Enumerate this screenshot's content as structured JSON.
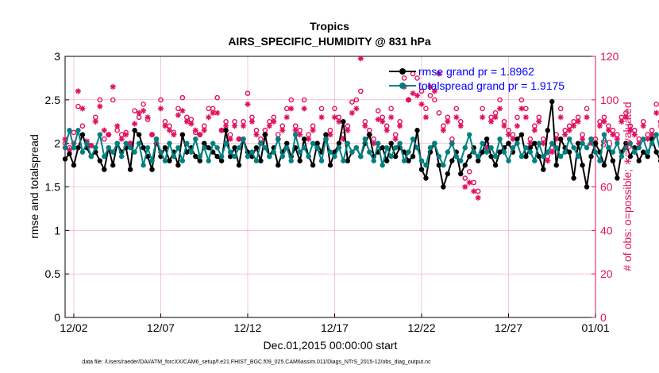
{
  "chart_data": {
    "type": "line",
    "title": "Tropics",
    "subtitle": "AIRS_SPECIFIC_HUMIDITY @ 831 hPa",
    "xlabel": "Dec.01,2015 00:00:00 start",
    "ylabel": "rmse and totalspread",
    "y2label": "# of obs: o=possible; ∗=evaluated",
    "x_ticks": [
      "12/02",
      "12/07",
      "12/12",
      "12/17",
      "12/22",
      "12/27",
      "01/01"
    ],
    "x_tick_days": [
      1,
      6,
      11,
      16,
      21,
      26,
      31
    ],
    "xlim": [
      0.5,
      31
    ],
    "ylim": [
      0,
      3
    ],
    "y_ticks": [
      "0",
      "0.5",
      "1",
      "1.5",
      "2",
      "2.5",
      "3"
    ],
    "y2lim": [
      0,
      120
    ],
    "y2_ticks": [
      "0",
      "20",
      "40",
      "60",
      "80",
      "100",
      "120"
    ],
    "grid": true,
    "legend_position": "top-right",
    "series": [
      {
        "name": "rmse grand pr = 1.8962",
        "color": "#000000",
        "x_start": 0.5,
        "x_step": 0.25,
        "values": [
          1.82,
          1.88,
          1.75,
          1.95,
          2.1,
          1.95,
          1.85,
          1.9,
          1.8,
          1.7,
          1.95,
          1.75,
          2.0,
          1.9,
          1.95,
          1.7,
          2.15,
          2.1,
          1.95,
          1.85,
          1.7,
          2.05,
          1.85,
          1.95,
          1.8,
          1.9,
          1.75,
          2.1,
          1.9,
          1.95,
          1.85,
          1.8,
          2.0,
          1.95,
          1.9,
          1.85,
          1.8,
          2.15,
          1.85,
          1.95,
          1.75,
          2.05,
          1.9,
          1.85,
          1.95,
          1.8,
          2.1,
          1.85,
          1.95,
          1.75,
          1.9,
          2.0,
          1.85,
          1.95,
          1.8,
          2.05,
          1.85,
          1.75,
          2.0,
          1.9,
          2.1,
          1.75,
          1.9,
          2.0,
          2.25,
          1.8,
          1.9,
          1.95,
          1.85,
          2.0,
          2.1,
          1.85,
          1.9,
          1.95,
          1.8,
          2.0,
          1.85,
          1.95,
          1.9,
          1.8,
          1.85,
          2.15,
          1.7,
          1.6,
          1.9,
          2.0,
          1.75,
          1.5,
          1.65,
          1.8,
          1.9,
          1.65,
          1.75,
          1.85,
          1.95,
          1.8,
          1.9,
          2.05,
          1.85,
          1.75,
          1.9,
          1.95,
          2.0,
          1.9,
          2.05,
          2.1,
          1.85,
          1.95,
          2.0,
          1.85,
          1.7,
          2.15,
          2.48,
          1.75,
          2.05,
          1.95,
          1.9,
          1.6,
          2.0,
          1.75,
          1.5,
          1.85,
          2.0,
          1.9,
          1.75,
          1.95,
          1.8,
          1.6,
          1.9,
          2.0,
          1.85,
          1.95,
          1.8,
          1.9,
          1.85,
          2.05,
          1.9,
          1.8,
          1.95,
          1.85,
          2.0,
          1.9,
          1.8,
          1.75,
          2.1,
          1.85,
          1.9,
          1.8,
          1.95,
          2.05,
          1.9,
          1.85,
          1.95,
          1.8,
          1.75,
          1.9,
          2.2,
          1.95,
          2.0,
          1.7,
          1.9,
          2.1,
          1.85,
          1.9,
          1.78,
          1.75,
          1.75
        ]
      },
      {
        "name": "totalspread grand pr = 1.9175",
        "color": "#008080",
        "x_start": 0.5,
        "x_step": 0.25,
        "values": [
          1.95,
          2.15,
          1.95,
          2.15,
          1.9,
          2.0,
          1.85,
          1.95,
          2.1,
          1.85,
          1.95,
          1.9,
          2.0,
          1.85,
          2.0,
          1.95,
          1.9,
          2.0,
          1.75,
          1.95,
          1.8,
          2.05,
          1.9,
          1.8,
          2.0,
          1.85,
          1.95,
          1.8,
          2.0,
          1.9,
          2.05,
          1.85,
          1.95,
          1.8,
          2.0,
          1.95,
          1.85,
          2.0,
          1.9,
          1.85,
          1.95,
          2.05,
          1.85,
          1.9,
          1.8,
          2.0,
          1.95,
          1.85,
          1.9,
          2.05,
          1.85,
          1.95,
          1.8,
          2.1,
          1.9,
          1.95,
          1.85,
          2.0,
          1.95,
          1.8,
          2.05,
          1.9,
          1.85,
          1.95,
          1.8,
          2.0,
          1.9,
          1.95,
          1.85,
          2.05,
          1.9,
          1.8,
          2.0,
          1.75,
          1.95,
          1.85,
          1.95,
          2.0,
          1.8,
          1.9,
          2.05,
          1.95,
          1.8,
          1.75,
          1.95,
          2.0,
          1.85,
          1.75,
          1.9,
          2.0,
          1.85,
          1.8,
          1.95,
          2.1,
          1.9,
          1.85,
          2.0,
          1.9,
          1.95,
          1.85,
          2.05,
          1.9,
          1.8,
          1.95,
          2.0,
          1.85,
          1.95,
          1.9,
          1.8,
          2.0,
          1.85,
          1.9,
          2.0,
          1.95,
          1.85,
          1.9,
          2.05,
          1.95,
          1.85,
          2.0,
          1.95,
          2.05,
          1.9,
          1.8,
          2.1,
          1.95,
          1.9,
          2.0,
          1.85,
          1.95,
          2.0,
          1.9,
          1.95,
          2.05,
          1.9,
          2.0,
          2.1,
          1.9,
          1.95,
          2.05,
          2.0,
          1.95,
          2.0,
          1.9,
          2.05,
          1.95,
          2.05,
          1.95,
          2.05,
          2.1,
          2.15,
          2.0,
          1.95,
          2.1,
          1.8,
          2.05,
          2.15,
          1.95,
          2.25,
          2.05,
          1.85,
          2.1,
          2.2,
          1.85,
          1.95,
          2.05,
          1.8,
          2.72,
          1.7
        ]
      },
      {
        "name": "obs possible (o)",
        "axis": "right",
        "color": "#e0115f",
        "marker": "circle",
        "x_start": 0.5,
        "x_step": 0.25,
        "values": [
          80,
          78,
          85,
          97,
          88,
          80,
          79,
          92,
          100,
          82,
          84,
          100,
          86,
          84,
          85,
          80,
          95,
          92,
          98,
          91,
          84,
          80,
          100,
          90,
          88,
          85,
          96,
          101,
          92,
          91,
          85,
          84,
          88,
          96,
          96,
          101,
          86,
          90,
          84,
          90,
          82,
          90,
          103,
          92,
          86,
          82,
          86,
          90,
          92,
          84,
          88,
          96,
          100,
          88,
          86,
          100,
          84,
          88,
          80,
          96,
          84,
          86,
          96,
          92,
          84,
          88,
          99,
          100,
          104,
          90,
          86,
          82,
          95,
          92,
          88,
          96,
          84,
          90,
          110,
          100,
          112,
          110,
          104,
          96,
          102,
          100,
          94,
          88,
          92,
          82,
          96,
          90,
          64,
          67,
          62,
          58,
          96,
          80,
          92,
          94,
          100,
          90,
          86,
          84,
          92,
          100,
          96,
          82,
          88,
          92,
          82,
          74,
          78,
          84,
          96,
          86,
          88,
          90,
          92,
          84,
          96,
          82,
          82,
          90,
          92,
          88,
          86,
          84,
          92,
          94,
          88,
          86,
          82,
          90,
          84,
          86,
          98,
          90,
          86,
          84,
          82,
          80,
          84,
          86,
          88,
          90,
          84,
          82,
          88,
          84,
          92,
          86,
          88,
          96,
          100,
          88,
          86,
          84,
          80,
          90,
          82,
          84,
          80,
          96,
          96,
          44,
          42,
          46,
          48,
          50,
          100,
          97,
          0
        ]
      },
      {
        "name": "obs evaluated (∗)",
        "axis": "right",
        "color": "#e0115f",
        "marker": "star",
        "x_start": 0.5,
        "x_step": 0.25,
        "values": [
          82,
          77,
          80,
          104,
          96,
          81,
          79,
          90,
          97,
          86,
          84,
          106,
          88,
          82,
          84,
          80,
          89,
          94,
          95,
          92,
          84,
          80,
          96,
          88,
          86,
          84,
          93,
          95,
          90,
          89,
          86,
          84,
          86,
          92,
          94,
          94,
          86,
          88,
          82,
          88,
          82,
          88,
          98,
          90,
          84,
          80,
          84,
          88,
          90,
          82,
          86,
          92,
          96,
          86,
          84,
          96,
          82,
          86,
          78,
          92,
          82,
          84,
          92,
          90,
          82,
          86,
          94,
          96,
          119,
          88,
          84,
          80,
          91,
          90,
          86,
          92,
          82,
          88,
          106,
          100,
          103,
          102,
          98,
          92,
          106,
          104,
          112,
          86,
          90,
          80,
          92,
          88,
          60,
          62,
          58,
          55,
          92,
          78,
          90,
          92,
          96,
          88,
          84,
          82,
          88,
          96,
          92,
          80,
          86,
          90,
          80,
          72,
          76,
          82,
          92,
          84,
          86,
          88,
          90,
          82,
          92,
          80,
          80,
          88,
          90,
          86,
          84,
          82,
          90,
          92,
          86,
          84,
          80,
          88,
          82,
          84,
          94,
          88,
          84,
          82,
          80,
          78,
          82,
          84,
          86,
          88,
          82,
          80,
          86,
          82,
          90,
          84,
          86,
          92,
          96,
          86,
          84,
          82,
          78,
          88,
          80,
          82,
          78,
          90,
          92,
          62,
          40,
          42,
          46,
          48,
          98,
          96,
          0
        ]
      }
    ]
  },
  "footer": "data file: /Users/raeder/DAI/ATM_forcXX/CAM6_setup/f.e21.FHIST_BGC.f09_025.CAM6assim.011/Diags_NTrS_2015-12/obs_diag_output.nc"
}
